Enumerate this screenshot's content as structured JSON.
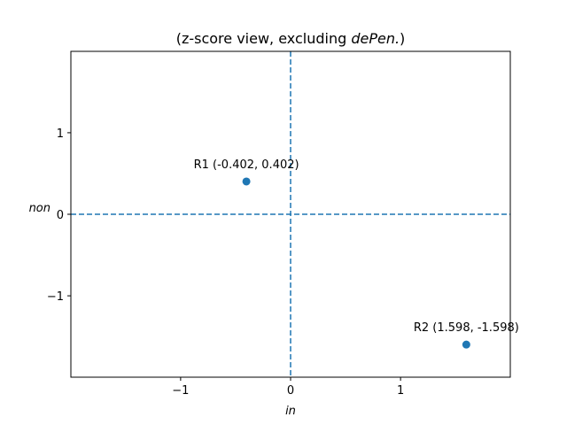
{
  "chart_data": {
    "type": "scatter",
    "title_prefix": "(z-score view, excluding ",
    "title_italic": "dePen.",
    "title_suffix": ")",
    "xlabel": "in",
    "ylabel": "non",
    "xlim": [
      -1.998,
      1.998
    ],
    "ylim": [
      -1.998,
      1.998
    ],
    "xticks": [
      -1,
      0,
      1
    ],
    "yticks": [
      -1,
      0,
      1
    ],
    "xtick_labels": [
      "−1",
      "0",
      "1"
    ],
    "ytick_labels": [
      "−1",
      "0",
      "1"
    ],
    "grid": false,
    "reference_lines": {
      "x": 0,
      "y": 0,
      "style": "dashed"
    },
    "points": [
      {
        "label": "R1 (-0.402, 0.402)",
        "x": -0.402,
        "y": 0.402
      },
      {
        "label": "R2 (1.598, -1.598)",
        "x": 1.598,
        "y": -1.598
      }
    ],
    "colors": {
      "point": "#1f77b4",
      "line": "#1f77b4",
      "axes": "#000000"
    }
  }
}
